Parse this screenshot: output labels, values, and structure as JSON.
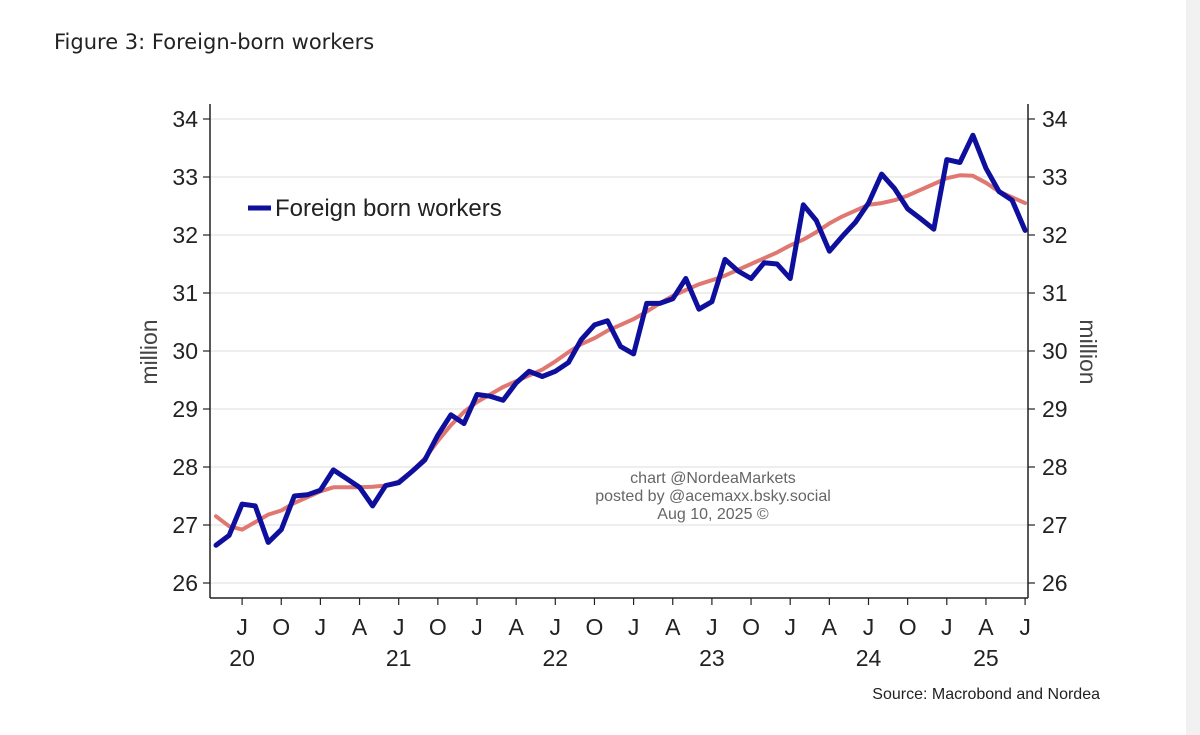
{
  "page": {
    "title": "Figure 3: Foreign-born workers"
  },
  "chart_data": {
    "type": "line",
    "ylabel_left": "million",
    "ylabel_right": "million",
    "ylim": [
      26,
      34
    ],
    "yticks": [
      26,
      27,
      28,
      29,
      30,
      31,
      32,
      33,
      34
    ],
    "grid": true,
    "legend": "top-left",
    "legend_entries": [
      "Foreign born workers"
    ],
    "x_range": [
      "2020-05",
      "2025-07"
    ],
    "month_ticks": [
      {
        "date": "2020-07",
        "label": "J"
      },
      {
        "date": "2020-10",
        "label": "O"
      },
      {
        "date": "2021-01",
        "label": "J"
      },
      {
        "date": "2021-04",
        "label": "A"
      },
      {
        "date": "2021-07",
        "label": "J"
      },
      {
        "date": "2021-10",
        "label": "O"
      },
      {
        "date": "2022-01",
        "label": "J"
      },
      {
        "date": "2022-04",
        "label": "A"
      },
      {
        "date": "2022-07",
        "label": "J"
      },
      {
        "date": "2022-10",
        "label": "O"
      },
      {
        "date": "2023-01",
        "label": "J"
      },
      {
        "date": "2023-04",
        "label": "A"
      },
      {
        "date": "2023-07",
        "label": "J"
      },
      {
        "date": "2023-10",
        "label": "O"
      },
      {
        "date": "2024-01",
        "label": "J"
      },
      {
        "date": "2024-04",
        "label": "A"
      },
      {
        "date": "2024-07",
        "label": "J"
      },
      {
        "date": "2024-10",
        "label": "O"
      },
      {
        "date": "2025-01",
        "label": "J"
      },
      {
        "date": "2025-04",
        "label": "A"
      },
      {
        "date": "2025-07",
        "label": "J"
      }
    ],
    "year_labels": [
      {
        "date": "2020-07",
        "label": "20"
      },
      {
        "date": "2021-07",
        "label": "21"
      },
      {
        "date": "2022-07",
        "label": "22"
      },
      {
        "date": "2023-07",
        "label": "23"
      },
      {
        "date": "2024-07",
        "label": "24"
      },
      {
        "date": "2025-04",
        "label": "25"
      }
    ],
    "series": [
      {
        "name": "Foreign born workers",
        "color": "#0f0f9e",
        "x": [
          "2020-05",
          "2020-06",
          "2020-07",
          "2020-08",
          "2020-09",
          "2020-10",
          "2020-11",
          "2020-12",
          "2021-01",
          "2021-02",
          "2021-03",
          "2021-04",
          "2021-05",
          "2021-06",
          "2021-07",
          "2021-08",
          "2021-09",
          "2021-10",
          "2021-11",
          "2021-12",
          "2022-01",
          "2022-02",
          "2022-03",
          "2022-04",
          "2022-05",
          "2022-06",
          "2022-07",
          "2022-08",
          "2022-09",
          "2022-10",
          "2022-11",
          "2022-12",
          "2023-01",
          "2023-02",
          "2023-03",
          "2023-04",
          "2023-05",
          "2023-06",
          "2023-07",
          "2023-08",
          "2023-09",
          "2023-10",
          "2023-11",
          "2023-12",
          "2024-01",
          "2024-02",
          "2024-03",
          "2024-04",
          "2024-05",
          "2024-06",
          "2024-07",
          "2024-08",
          "2024-09",
          "2024-10",
          "2024-11",
          "2024-12",
          "2025-01",
          "2025-02",
          "2025-03",
          "2025-04",
          "2025-05",
          "2025-06",
          "2025-07"
        ],
        "values": [
          26.65,
          26.82,
          27.36,
          27.33,
          26.7,
          26.92,
          27.5,
          27.52,
          27.6,
          27.95,
          27.8,
          27.65,
          27.33,
          27.68,
          27.73,
          27.92,
          28.12,
          28.55,
          28.9,
          28.75,
          29.25,
          29.22,
          29.15,
          29.45,
          29.65,
          29.56,
          29.65,
          29.8,
          30.2,
          30.45,
          30.52,
          30.08,
          29.95,
          30.82,
          30.82,
          30.9,
          31.25,
          30.72,
          30.85,
          31.58,
          31.38,
          31.25,
          31.52,
          31.5,
          31.25,
          32.52,
          32.25,
          31.72,
          31.98,
          32.22,
          32.55,
          33.05,
          32.8,
          32.45,
          32.28,
          32.1,
          33.3,
          33.25,
          33.72,
          33.15,
          32.75,
          32.6,
          32.08
        ]
      },
      {
        "name": "",
        "color": "#e07770",
        "x": [
          "2020-05",
          "2020-06",
          "2020-07",
          "2020-08",
          "2020-09",
          "2020-10",
          "2020-11",
          "2020-12",
          "2021-01",
          "2021-02",
          "2021-03",
          "2021-04",
          "2021-05",
          "2021-06",
          "2021-07",
          "2021-08",
          "2021-09",
          "2021-10",
          "2021-11",
          "2021-12",
          "2022-01",
          "2022-02",
          "2022-03",
          "2022-04",
          "2022-05",
          "2022-06",
          "2022-07",
          "2022-08",
          "2022-09",
          "2022-10",
          "2022-11",
          "2022-12",
          "2023-01",
          "2023-02",
          "2023-03",
          "2023-04",
          "2023-05",
          "2023-06",
          "2023-07",
          "2023-08",
          "2023-09",
          "2023-10",
          "2023-11",
          "2023-12",
          "2024-01",
          "2024-02",
          "2024-03",
          "2024-04",
          "2024-05",
          "2024-06",
          "2024-07",
          "2024-08",
          "2024-09",
          "2024-10",
          "2024-11",
          "2024-12",
          "2025-01",
          "2025-02",
          "2025-03",
          "2025-04",
          "2025-05",
          "2025-06",
          "2025-07"
        ],
        "values": [
          27.15,
          26.98,
          26.92,
          27.05,
          27.18,
          27.25,
          27.38,
          27.48,
          27.58,
          27.65,
          27.65,
          27.65,
          27.66,
          27.68,
          27.75,
          27.92,
          28.15,
          28.45,
          28.72,
          28.95,
          29.12,
          29.25,
          29.38,
          29.48,
          29.58,
          29.68,
          29.82,
          29.98,
          30.12,
          30.22,
          30.35,
          30.45,
          30.55,
          30.68,
          30.82,
          30.95,
          31.05,
          31.15,
          31.22,
          31.3,
          31.4,
          31.5,
          31.6,
          31.7,
          31.82,
          31.92,
          32.05,
          32.2,
          32.32,
          32.42,
          32.52,
          32.55,
          32.6,
          32.68,
          32.78,
          32.88,
          32.98,
          33.03,
          33.02,
          32.9,
          32.75,
          32.65,
          32.55
        ]
      }
    ],
    "annotations": [
      "chart @NordeaMarkets",
      "posted by @acemaxx.bsky.social",
      "Aug 10, 2025 ©"
    ],
    "source": "Source: Macrobond and Nordea"
  }
}
